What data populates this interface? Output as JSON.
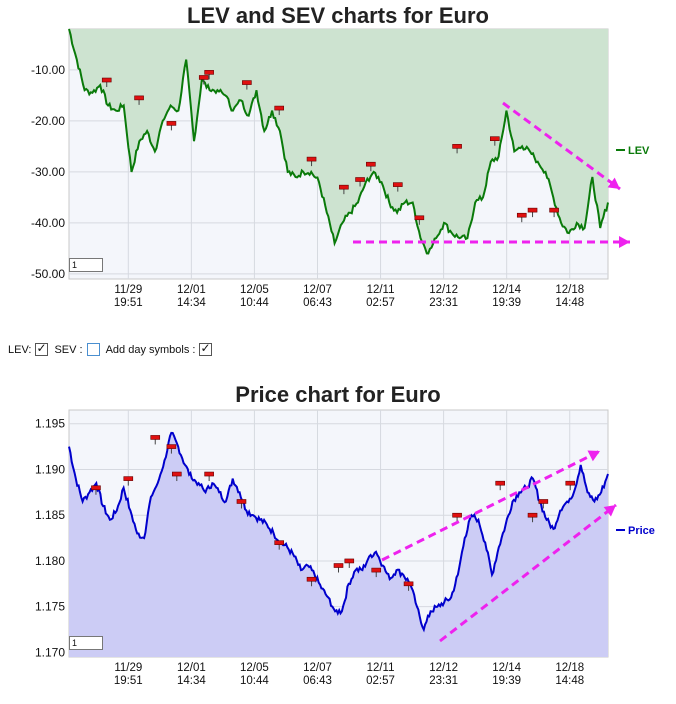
{
  "lev_chart": {
    "title": "LEV and SEV charts for Euro",
    "legend_label": "LEV",
    "zoom_value": "1"
  },
  "controls": {
    "lev_label": "LEV:",
    "sev_label": "SEV :",
    "day_symbols_label": "Add day symbols :",
    "lev_checked": true,
    "sev_checked": false,
    "day_symbols_checked": true
  },
  "price_chart": {
    "title": "Price chart for Euro",
    "legend_label": "Price",
    "zoom_value": "1"
  },
  "chart_data": [
    {
      "type": "area",
      "title": "LEV and SEV charts for Euro",
      "color_line": "#0a7a0a",
      "color_fill": "#cde3d0",
      "x_tick_labels": [
        [
          "11/29",
          "19:51"
        ],
        [
          "12/01",
          "14:34"
        ],
        [
          "12/05",
          "10:44"
        ],
        [
          "12/07",
          "06:43"
        ],
        [
          "12/11",
          "02:57"
        ],
        [
          "12/12",
          "23:31"
        ],
        [
          "12/14",
          "19:39"
        ],
        [
          "12/18",
          "14:48"
        ]
      ],
      "y_ticks": [
        -10,
        -20,
        -30,
        -40,
        -50
      ],
      "y_tick_labels": [
        "-10.00",
        "-20.00",
        "-30.00",
        "-40.00",
        "-50.00"
      ],
      "ylim": [
        -51,
        -2
      ],
      "grid": true,
      "legend_position": "right",
      "series": [
        {
          "name": "LEV",
          "x": [
            0,
            1,
            2,
            3,
            4,
            5,
            6,
            7,
            8,
            9,
            10,
            11,
            12,
            13,
            14,
            15,
            16,
            17,
            18,
            19,
            20,
            21,
            22,
            23,
            24,
            25,
            26,
            27,
            28,
            29,
            30,
            31,
            32,
            33,
            34,
            35,
            36,
            37,
            38,
            39,
            40,
            41,
            42,
            43,
            44,
            45,
            46,
            47,
            48,
            49,
            50,
            51,
            52,
            53,
            54,
            55,
            56,
            57,
            58,
            59,
            60,
            61,
            62,
            63,
            64,
            65,
            66,
            67,
            68,
            69
          ],
          "values": [
            -2,
            -8,
            -14,
            -14.5,
            -13,
            -17,
            -18,
            -17,
            -30,
            -24,
            -22,
            -26,
            -20,
            -17,
            -18,
            -8,
            -24,
            -12,
            -14,
            -14,
            -15,
            -18,
            -16,
            -19,
            -14,
            -22,
            -18,
            -22,
            -30,
            -31,
            -30,
            -30,
            -32,
            -38,
            -44,
            -40,
            -38,
            -36,
            -32,
            -30,
            -32,
            -36,
            -38,
            -36,
            -36,
            -43,
            -46,
            -43,
            -40,
            -42,
            -43,
            -43,
            -36,
            -35,
            -28,
            -27,
            -18,
            -26,
            -25,
            -26,
            -28,
            -30,
            -35,
            -40,
            -42,
            -40,
            -41,
            -31,
            -41,
            -36
          ]
        }
      ],
      "markers": [
        [
          7,
          -12
        ],
        [
          13,
          -15.5
        ],
        [
          19,
          -20.5
        ],
        [
          25,
          -11.5
        ],
        [
          26,
          -10.5
        ],
        [
          33,
          -12.5
        ],
        [
          39,
          -17.5
        ],
        [
          45,
          -27.5
        ],
        [
          51,
          -33
        ],
        [
          54,
          -31.5
        ],
        [
          56,
          -28.5
        ],
        [
          61,
          -32.5
        ],
        [
          65,
          -39
        ],
        [
          72,
          -25
        ],
        [
          79,
          -23.5
        ],
        [
          84,
          -38.5
        ],
        [
          86,
          -37.5
        ],
        [
          90,
          -37.5
        ]
      ],
      "annotations": [
        "trend-arrow-down-right",
        "support-arrow-horizontal"
      ]
    },
    {
      "type": "area",
      "title": "Price chart for Euro",
      "color_line": "#0000cc",
      "color_fill": "#ccccf5",
      "x_tick_labels": [
        [
          "11/29",
          "19:51"
        ],
        [
          "12/01",
          "14:34"
        ],
        [
          "12/05",
          "10:44"
        ],
        [
          "12/07",
          "06:43"
        ],
        [
          "12/11",
          "02:57"
        ],
        [
          "12/12",
          "23:31"
        ],
        [
          "12/14",
          "19:39"
        ],
        [
          "12/18",
          "14:48"
        ]
      ],
      "y_ticks": [
        1.195,
        1.19,
        1.185,
        1.18,
        1.175,
        1.17
      ],
      "y_tick_labels": [
        "1.195",
        "1.190",
        "1.185",
        "1.180",
        "1.175",
        "1.170"
      ],
      "ylim": [
        1.1695,
        1.1965
      ],
      "grid": true,
      "legend_position": "right",
      "series": [
        {
          "name": "Price",
          "values": [
            1.1925,
            1.189,
            1.1865,
            1.1875,
            1.1885,
            1.186,
            1.1845,
            1.1855,
            1.188,
            1.1855,
            1.183,
            1.1825,
            1.187,
            1.1885,
            1.191,
            1.194,
            1.1925,
            1.1905,
            1.189,
            1.1885,
            1.1875,
            1.1885,
            1.1875,
            1.1865,
            1.189,
            1.1875,
            1.1855,
            1.185,
            1.1845,
            1.184,
            1.183,
            1.182,
            1.1815,
            1.1805,
            1.179,
            1.1795,
            1.1785,
            1.177,
            1.176,
            1.1745,
            1.1745,
            1.1775,
            1.179,
            1.179,
            1.1805,
            1.181,
            1.1795,
            1.178,
            1.179,
            1.1785,
            1.1775,
            1.175,
            1.1725,
            1.1745,
            1.175,
            1.1755,
            1.176,
            1.1785,
            1.1825,
            1.185,
            1.1845,
            1.182,
            1.1785,
            1.1815,
            1.184,
            1.1865,
            1.1875,
            1.188,
            1.189,
            1.1865,
            1.1845,
            1.1835,
            1.1855,
            1.1865,
            1.1875,
            1.1905,
            1.1875,
            1.1865,
            1.1875,
            1.1895
          ]
        }
      ],
      "markers": [
        [
          5,
          1.188
        ],
        [
          11,
          1.189
        ],
        [
          16,
          1.1935
        ],
        [
          19,
          1.1925
        ],
        [
          20,
          1.1895
        ],
        [
          26,
          1.1895
        ],
        [
          32,
          1.1865
        ],
        [
          39,
          1.182
        ],
        [
          45,
          1.178
        ],
        [
          50,
          1.1795
        ],
        [
          52,
          1.18
        ],
        [
          57,
          1.179
        ],
        [
          63,
          1.1775
        ],
        [
          72,
          1.185
        ],
        [
          80,
          1.1885
        ],
        [
          86,
          1.185
        ],
        [
          88,
          1.1865
        ],
        [
          93,
          1.1885
        ]
      ],
      "annotations": [
        "upper-channel-arrow",
        "lower-channel-arrow"
      ]
    }
  ]
}
